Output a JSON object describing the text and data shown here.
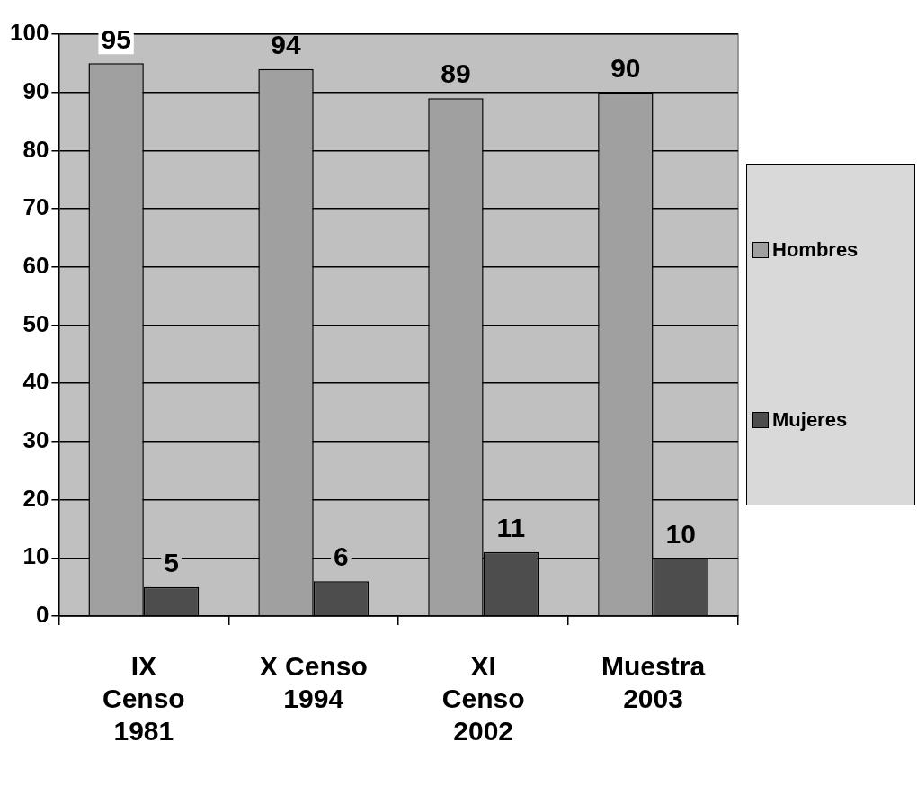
{
  "chart_data": {
    "type": "bar",
    "categories": [
      "IX Censo 1981",
      "X Censo 1994",
      "XI Censo 2002",
      "Muestra 2003"
    ],
    "series": [
      {
        "name": "Hombres",
        "color": "#a0a0a0",
        "values": [
          95,
          94,
          89,
          90
        ]
      },
      {
        "name": "Mujeres",
        "color": "#4d4d4d",
        "values": [
          5,
          6,
          11,
          10
        ]
      }
    ],
    "ylim": [
      0,
      100
    ],
    "yticks": [
      0,
      10,
      20,
      30,
      40,
      50,
      60,
      70,
      80,
      90,
      100
    ],
    "grid": "y",
    "legend": "right",
    "data_labels": true
  }
}
